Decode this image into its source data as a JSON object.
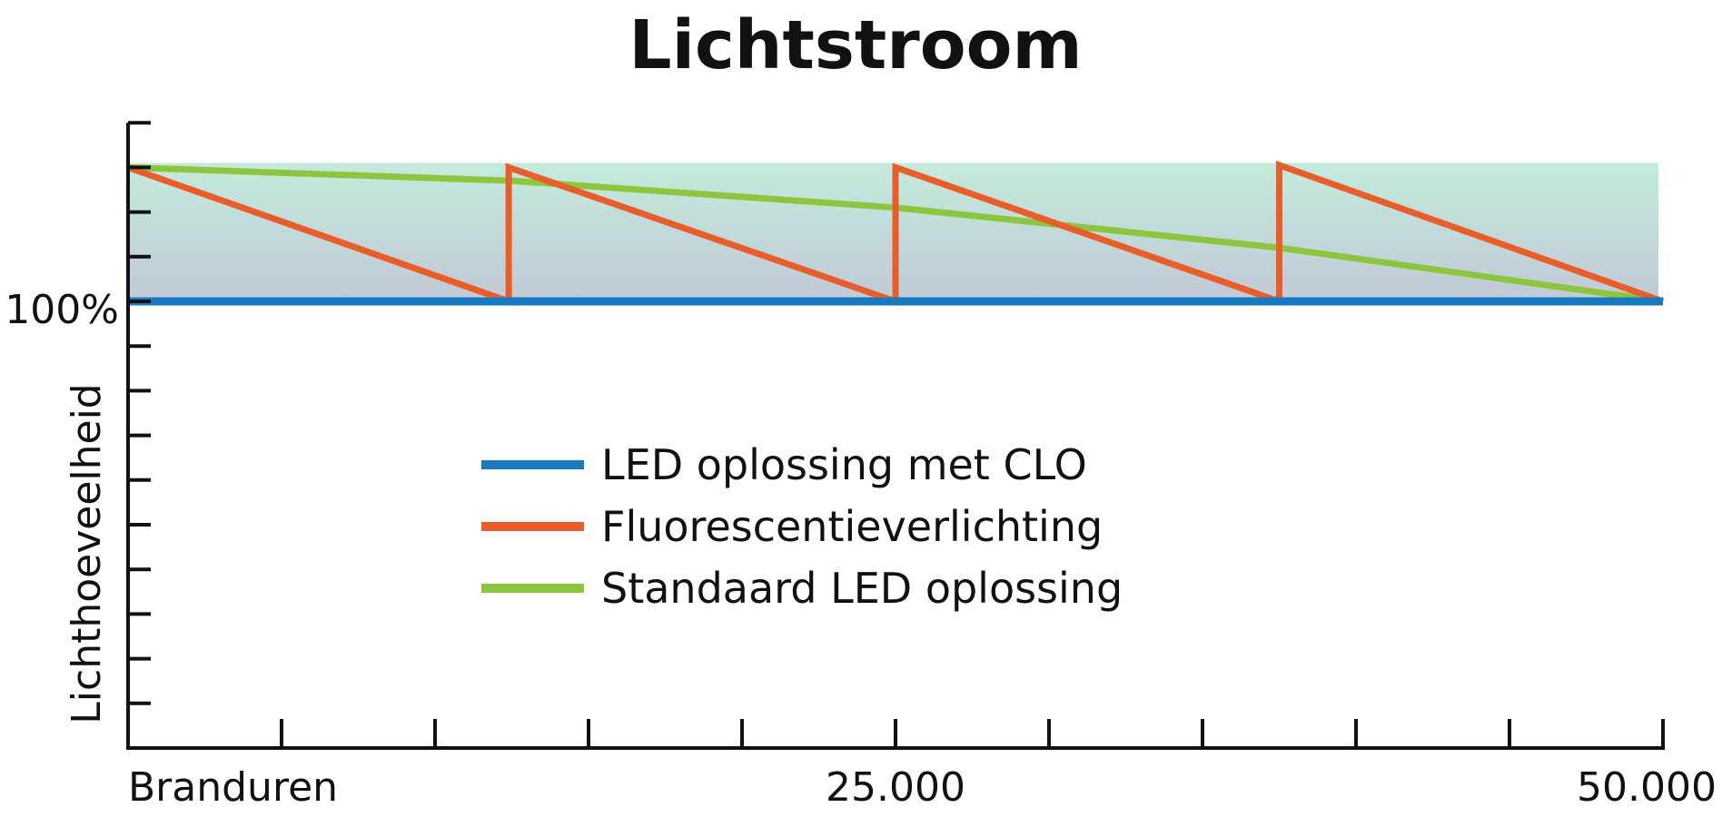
{
  "chart_data": {
    "type": "line",
    "title": "Lichtstroom",
    "xlabel": "Branduren",
    "ylabel": "Lichthoeveelheid",
    "xlim": [
      0,
      50000
    ],
    "ylim": [
      0,
      140
    ],
    "x_tick_labels": [
      {
        "value": 25000,
        "label": "25.000"
      },
      {
        "value": 50000,
        "label": "50.000"
      }
    ],
    "x_tick_step": 5000,
    "y_tick_labels": [
      {
        "value": 100,
        "label": "100%"
      }
    ],
    "y_tick_step": 10,
    "grid": false,
    "legend_position": "center",
    "shaded_band": {
      "from": 100,
      "to": 131,
      "colors": [
        "#c3ebdc",
        "#c2c9d6"
      ]
    },
    "series": [
      {
        "name": "LED oplossing met CLO",
        "color": "#1a7abf",
        "x": [
          0,
          50000
        ],
        "y": [
          100,
          100
        ]
      },
      {
        "name": "Fluorescentieverlichting",
        "color": "#e85d2a",
        "x": [
          0,
          12400,
          12400,
          25000,
          25000,
          37500,
          37500,
          50000
        ],
        "y": [
          130,
          100,
          130,
          100,
          130,
          100,
          130.5,
          100
        ]
      },
      {
        "name": "Standaard LED oplossing",
        "color": "#8cc63f",
        "x": [
          0,
          12500,
          25000,
          37500,
          50000
        ],
        "y": [
          130,
          127,
          121,
          112,
          100
        ]
      }
    ]
  }
}
